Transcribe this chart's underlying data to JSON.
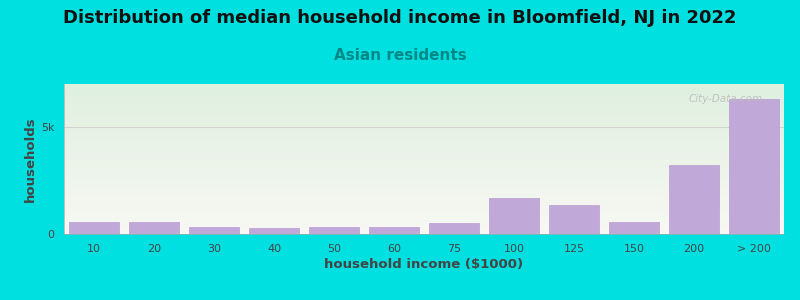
{
  "title": "Distribution of median household income in Bloomfield, NJ in 2022",
  "subtitle": "Asian residents",
  "xlabel": "household income ($1000)",
  "ylabel": "households",
  "background_outer": "#00e0e0",
  "background_inner_top": "#dff0df",
  "background_inner_bottom": "#f8f8f4",
  "bar_color": "#c0a8d8",
  "bar_edge_color": "#b090cc",
  "categories": [
    "10",
    "20",
    "30",
    "40",
    "50",
    "60",
    "75",
    "100",
    "125",
    "150",
    "200",
    "> 200"
  ],
  "values": [
    580,
    580,
    320,
    300,
    350,
    310,
    500,
    1700,
    1350,
    580,
    3200,
    6300
  ],
  "ylim": [
    0,
    7000
  ],
  "yticks": [
    0,
    5000
  ],
  "ytick_labels": [
    "0",
    "5k"
  ],
  "watermark": "City-Data.com",
  "title_fontsize": 13,
  "subtitle_fontsize": 11,
  "subtitle_color": "#008888",
  "axis_label_fontsize": 9.5,
  "tick_fontsize": 8
}
